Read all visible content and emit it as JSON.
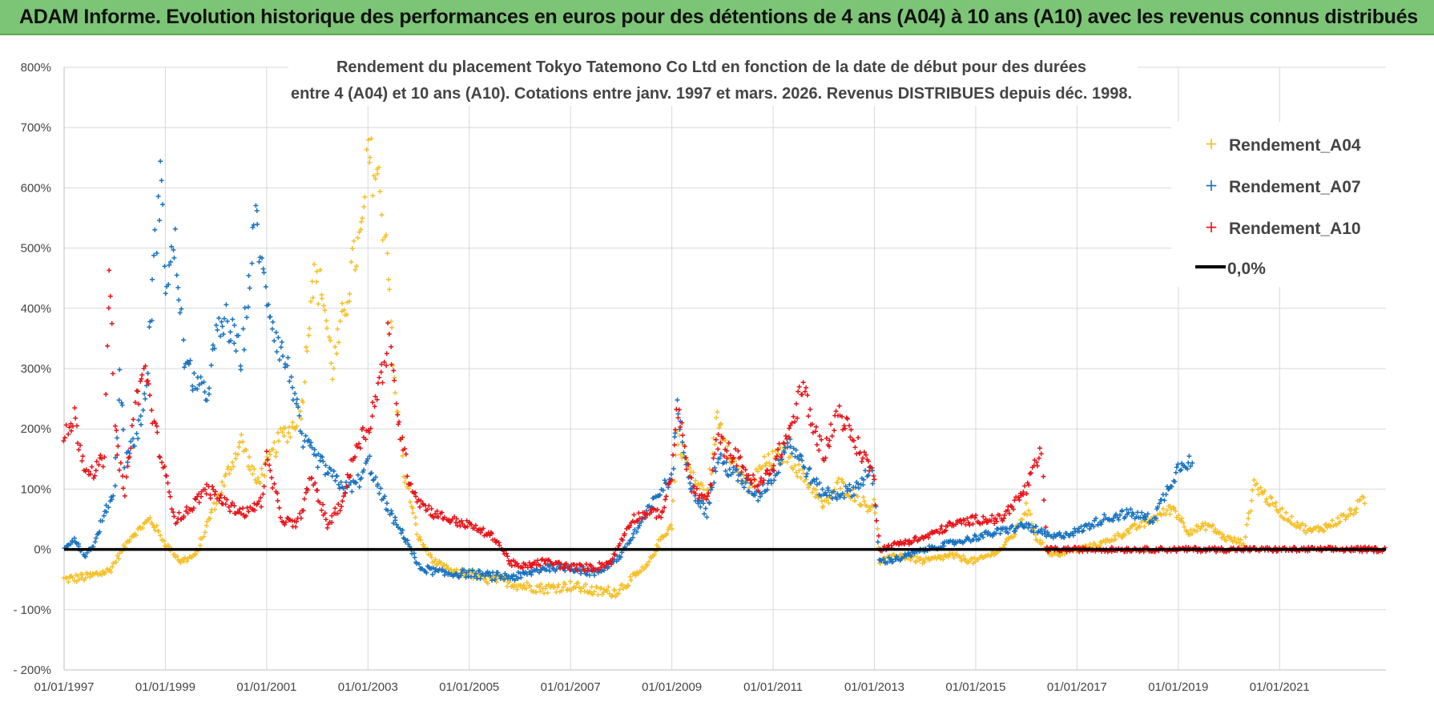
{
  "header": {
    "title": "ADAM Informe. Evolution historique des performances en euros pour des détentions de 4 ans (A04) à 10 ans (A10) avec les revenus connus distribués"
  },
  "chart_data": {
    "type": "scatter",
    "title_line1": "Rendement du placement Tokyo Tatemono Co Ltd en fonction de la date de début pour des durées",
    "title_line2": "entre 4 (A04) et 10 ans (A10).  Cotations entre janv. 1997 et mars. 2026. Revenus DISTRIBUES depuis déc. 1998.",
    "xlabel": "",
    "ylabel": "",
    "xlim": [
      1997.0,
      2023.1
    ],
    "ylim": [
      -200,
      800
    ],
    "y_ticks": [
      -200,
      -100,
      0,
      100,
      200,
      300,
      400,
      500,
      600,
      700,
      800
    ],
    "y_tick_labels": [
      "- 200%",
      "- 100%",
      "0%",
      "100%",
      "200%",
      "300%",
      "400%",
      "500%",
      "600%",
      "700%",
      "800%"
    ],
    "x_ticks": [
      1997,
      1999,
      2001,
      2003,
      2005,
      2007,
      2009,
      2011,
      2013,
      2015,
      2017,
      2019,
      2021
    ],
    "x_tick_labels": [
      "01/01/1997",
      "01/01/1999",
      "01/01/2001",
      "01/01/2003",
      "01/01/2005",
      "01/01/2007",
      "01/01/2009",
      "01/01/2011",
      "01/01/2013",
      "01/01/2015",
      "01/01/2017",
      "01/01/2019",
      "01/01/2021"
    ],
    "grid": true,
    "legend_position": "top-right",
    "series": [
      {
        "name": "Rendement_A04",
        "color": "#f5c02a",
        "marker": "+",
        "keypoints": [
          [
            1997.0,
            -50
          ],
          [
            1997.5,
            -45
          ],
          [
            1997.9,
            -35
          ],
          [
            1998.3,
            20
          ],
          [
            1998.7,
            50
          ],
          [
            1999.0,
            10
          ],
          [
            1999.3,
            -20
          ],
          [
            1999.6,
            -10
          ],
          [
            1999.9,
            60
          ],
          [
            2000.2,
            120
          ],
          [
            2000.5,
            180
          ],
          [
            2000.8,
            110
          ],
          [
            2001.0,
            140
          ],
          [
            2001.3,
            190
          ],
          [
            2001.5,
            200
          ],
          [
            2001.7,
            240
          ],
          [
            2001.9,
            450
          ],
          [
            2002.1,
            430
          ],
          [
            2002.3,
            300
          ],
          [
            2002.5,
            380
          ],
          [
            2002.7,
            470
          ],
          [
            2002.9,
            530
          ],
          [
            2003.0,
            650
          ],
          [
            2003.2,
            620
          ],
          [
            2003.4,
            480
          ],
          [
            2003.5,
            300
          ],
          [
            2003.7,
            130
          ],
          [
            2004.0,
            20
          ],
          [
            2004.3,
            -20
          ],
          [
            2004.7,
            -40
          ],
          [
            2005.0,
            -40
          ],
          [
            2005.3,
            -50
          ],
          [
            2005.6,
            -50
          ],
          [
            2006.0,
            -60
          ],
          [
            2006.5,
            -65
          ],
          [
            2007.0,
            -60
          ],
          [
            2007.5,
            -70
          ],
          [
            2007.9,
            -70
          ],
          [
            2008.2,
            -50
          ],
          [
            2008.5,
            -30
          ],
          [
            2008.8,
            20
          ],
          [
            2009.0,
            40
          ],
          [
            2009.1,
            190
          ],
          [
            2009.4,
            120
          ],
          [
            2009.7,
            90
          ],
          [
            2009.9,
            220
          ],
          [
            2010.2,
            150
          ],
          [
            2010.5,
            100
          ],
          [
            2010.8,
            140
          ],
          [
            2011.0,
            150
          ],
          [
            2011.3,
            160
          ],
          [
            2011.5,
            130
          ],
          [
            2011.8,
            100
          ],
          [
            2012.0,
            70
          ],
          [
            2012.3,
            110
          ],
          [
            2012.6,
            90
          ],
          [
            2012.9,
            70
          ],
          [
            2013.0,
            80
          ],
          [
            2013.1,
            -20
          ],
          [
            2013.5,
            -10
          ],
          [
            2014.0,
            -20
          ],
          [
            2014.5,
            -10
          ],
          [
            2015.0,
            -20
          ],
          [
            2015.5,
            0
          ],
          [
            2015.8,
            30
          ],
          [
            2016.0,
            70
          ],
          [
            2016.2,
            20
          ],
          [
            2016.5,
            -10
          ],
          [
            2017.0,
            0
          ],
          [
            2017.5,
            10
          ],
          [
            2018.0,
            30
          ],
          [
            2018.5,
            50
          ],
          [
            2018.9,
            70
          ],
          [
            2019.2,
            30
          ],
          [
            2019.6,
            40
          ],
          [
            2019.9,
            20
          ],
          [
            2020.3,
            10
          ],
          [
            2020.5,
            110
          ],
          [
            2020.8,
            80
          ],
          [
            2021.2,
            50
          ],
          [
            2021.6,
            30
          ],
          [
            2022.0,
            40
          ],
          [
            2022.4,
            60
          ],
          [
            2022.7,
            85
          ]
        ]
      },
      {
        "name": "Rendement_A07",
        "color": "#1a73c0",
        "marker": "+",
        "keypoints": [
          [
            1997.0,
            0
          ],
          [
            1997.2,
            20
          ],
          [
            1997.4,
            -10
          ],
          [
            1997.6,
            10
          ],
          [
            1997.8,
            60
          ],
          [
            1998.0,
            100
          ],
          [
            1998.1,
            300
          ],
          [
            1998.2,
            150
          ],
          [
            1998.4,
            180
          ],
          [
            1998.6,
            250
          ],
          [
            1998.8,
            500
          ],
          [
            1998.9,
            620
          ],
          [
            1999.0,
            450
          ],
          [
            1999.2,
            500
          ],
          [
            1999.4,
            300
          ],
          [
            1999.6,
            280
          ],
          [
            1999.8,
            250
          ],
          [
            2000.0,
            350
          ],
          [
            2000.2,
            380
          ],
          [
            2000.5,
            320
          ],
          [
            2000.7,
            480
          ],
          [
            2000.8,
            560
          ],
          [
            2000.9,
            460
          ],
          [
            2001.2,
            350
          ],
          [
            2001.5,
            280
          ],
          [
            2001.7,
            180
          ],
          [
            2002.0,
            150
          ],
          [
            2002.3,
            120
          ],
          [
            2002.6,
            100
          ],
          [
            2002.9,
            120
          ],
          [
            2003.0,
            150
          ],
          [
            2003.2,
            100
          ],
          [
            2003.5,
            50
          ],
          [
            2003.8,
            10
          ],
          [
            2004.0,
            -30
          ],
          [
            2004.5,
            -40
          ],
          [
            2005.0,
            -40
          ],
          [
            2005.5,
            -45
          ],
          [
            2006.0,
            -45
          ],
          [
            2006.5,
            -30
          ],
          [
            2007.0,
            -30
          ],
          [
            2007.5,
            -40
          ],
          [
            2008.0,
            -10
          ],
          [
            2008.5,
            60
          ],
          [
            2008.8,
            100
          ],
          [
            2009.0,
            120
          ],
          [
            2009.1,
            230
          ],
          [
            2009.4,
            100
          ],
          [
            2009.7,
            60
          ],
          [
            2009.9,
            150
          ],
          [
            2010.3,
            120
          ],
          [
            2010.7,
            90
          ],
          [
            2011.0,
            120
          ],
          [
            2011.3,
            180
          ],
          [
            2011.6,
            140
          ],
          [
            2011.9,
            100
          ],
          [
            2012.2,
            90
          ],
          [
            2012.6,
            100
          ],
          [
            2012.9,
            130
          ],
          [
            2013.0,
            110
          ],
          [
            2013.1,
            -20
          ],
          [
            2013.5,
            -15
          ],
          [
            2014.0,
            0
          ],
          [
            2014.5,
            10
          ],
          [
            2015.0,
            20
          ],
          [
            2015.5,
            30
          ],
          [
            2016.0,
            40
          ],
          [
            2016.5,
            20
          ],
          [
            2017.0,
            30
          ],
          [
            2017.5,
            50
          ],
          [
            2018.0,
            60
          ],
          [
            2018.5,
            50
          ],
          [
            2018.9,
            120
          ],
          [
            2019.1,
            150
          ],
          [
            2019.3,
            140
          ]
        ]
      },
      {
        "name": "Rendement_A10",
        "color": "#e8141a",
        "marker": "+",
        "keypoints": [
          [
            1997.0,
            180
          ],
          [
            1997.2,
            220
          ],
          [
            1997.4,
            140
          ],
          [
            1997.6,
            130
          ],
          [
            1997.8,
            150
          ],
          [
            1997.9,
            500
          ],
          [
            1998.0,
            200
          ],
          [
            1998.2,
            90
          ],
          [
            1998.4,
            240
          ],
          [
            1998.6,
            300
          ],
          [
            1998.8,
            200
          ],
          [
            1999.0,
            120
          ],
          [
            1999.2,
            50
          ],
          [
            1999.4,
            60
          ],
          [
            1999.6,
            80
          ],
          [
            1999.8,
            100
          ],
          [
            2000.0,
            90
          ],
          [
            2000.3,
            70
          ],
          [
            2000.6,
            60
          ],
          [
            2000.9,
            80
          ],
          [
            2001.0,
            150
          ],
          [
            2001.3,
            50
          ],
          [
            2001.6,
            40
          ],
          [
            2001.9,
            120
          ],
          [
            2002.2,
            40
          ],
          [
            2002.5,
            80
          ],
          [
            2002.8,
            180
          ],
          [
            2003.0,
            200
          ],
          [
            2003.3,
            300
          ],
          [
            2003.4,
            350
          ],
          [
            2003.6,
            220
          ],
          [
            2003.8,
            120
          ],
          [
            2004.0,
            80
          ],
          [
            2004.3,
            60
          ],
          [
            2004.6,
            50
          ],
          [
            2005.0,
            40
          ],
          [
            2005.5,
            20
          ],
          [
            2005.8,
            -20
          ],
          [
            2006.0,
            -30
          ],
          [
            2006.5,
            -20
          ],
          [
            2007.0,
            -30
          ],
          [
            2007.5,
            -30
          ],
          [
            2007.8,
            -20
          ],
          [
            2008.2,
            50
          ],
          [
            2008.5,
            60
          ],
          [
            2008.8,
            60
          ],
          [
            2009.0,
            120
          ],
          [
            2009.1,
            240
          ],
          [
            2009.4,
            100
          ],
          [
            2009.7,
            80
          ],
          [
            2009.9,
            180
          ],
          [
            2010.3,
            150
          ],
          [
            2010.7,
            100
          ],
          [
            2011.0,
            140
          ],
          [
            2011.3,
            190
          ],
          [
            2011.6,
            270
          ],
          [
            2011.8,
            200
          ],
          [
            2012.0,
            160
          ],
          [
            2012.3,
            230
          ],
          [
            2012.6,
            180
          ],
          [
            2012.9,
            140
          ],
          [
            2013.0,
            110
          ],
          [
            2013.1,
            0
          ],
          [
            2013.5,
            10
          ],
          [
            2014.0,
            20
          ],
          [
            2014.5,
            40
          ],
          [
            2015.0,
            50
          ],
          [
            2015.5,
            50
          ],
          [
            2016.0,
            100
          ],
          [
            2016.3,
            160
          ],
          [
            2016.4,
            0
          ],
          [
            2017.0,
            0
          ],
          [
            2018.0,
            0
          ],
          [
            2019.0,
            0
          ],
          [
            2020.0,
            0
          ],
          [
            2021.0,
            0
          ],
          [
            2022.0,
            0
          ],
          [
            2022.6,
            0
          ],
          [
            2023.1,
            0
          ]
        ]
      }
    ],
    "reference_line": {
      "name": "0,0%",
      "y": 0,
      "color": "#000000"
    },
    "legend": {
      "entries": [
        {
          "label": "Rendement_A04",
          "color": "#f5c02a",
          "symbol": "+"
        },
        {
          "label": "Rendement_A07",
          "color": "#1a73c0",
          "symbol": "+"
        },
        {
          "label": "Rendement_A10",
          "color": "#e8141a",
          "symbol": "+"
        },
        {
          "label": "0,0%",
          "color": "#000000",
          "symbol": "line"
        }
      ]
    }
  }
}
